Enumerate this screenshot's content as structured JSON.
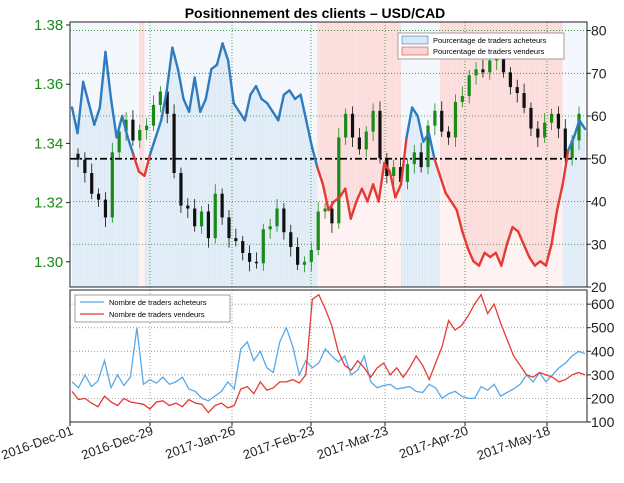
{
  "colors": {
    "buyers": "#2e7bbf",
    "buyers_light": "#5ba8e6",
    "sellers": "#e53a33",
    "sellers_fill": "#fbd4d4",
    "buyers_fill": "#d9e8f5",
    "candle_up": "#1a8a1a",
    "candle_down": "#111111",
    "left_axis": "#1a8a1a",
    "grid": "#2a8a2a"
  },
  "chart_data": [
    {
      "type": "line",
      "title": "Positionnement des clients – USD/CAD",
      "left_axis": {
        "ticks": [
          "1.38",
          "1.36",
          "1.34",
          "1.32",
          "1.30"
        ],
        "ylim": [
          1.2915,
          1.381
        ]
      },
      "right_axis": {
        "ticks": [
          "80",
          "70",
          "60",
          "50",
          "40",
          "30",
          "20"
        ],
        "ylim": [
          20,
          82
        ],
        "reference_line": 50
      },
      "legend": {
        "placement": "top-right",
        "entries": [
          "Pourcentage de traders acheteurs",
          "Pourcentage de traders vendeurs"
        ]
      },
      "x_ticks": [
        "2016-Dec-01",
        "2016-Dec-29",
        "2017-Jan-26",
        "2017-Feb-23",
        "2017-Mar-23",
        "2017-Apr-20",
        "2017-May-18"
      ],
      "series": [
        {
          "name": "Pourcentage de traders acheteurs",
          "values": [
            62,
            56,
            68,
            63,
            58,
            62,
            75,
            64,
            55,
            60,
            55,
            51,
            47,
            46,
            51,
            55,
            59,
            66,
            76,
            71,
            64,
            61,
            69,
            61,
            64,
            71,
            72,
            77,
            73,
            63,
            61,
            59,
            65,
            67,
            64,
            63,
            61,
            59,
            65,
            66,
            64,
            65,
            59,
            53,
            48,
            44,
            38,
            40,
            41,
            43,
            36,
            40,
            43,
            40,
            44,
            40,
            49,
            47,
            41,
            44,
            55,
            62,
            60,
            54,
            56,
            50,
            46,
            42,
            40,
            38,
            33,
            29,
            26,
            25,
            28,
            27,
            28,
            25,
            30,
            34,
            33,
            30,
            27,
            25,
            26,
            25,
            30,
            38,
            44,
            52,
            55,
            59,
            57
          ]
        },
        {
          "name": "Close",
          "values": [
            1.3345,
            1.33,
            1.323,
            1.321,
            1.315,
            1.337,
            1.344,
            1.348,
            1.341,
            1.3445,
            1.346,
            1.353,
            1.3575,
            1.35,
            1.33,
            1.319,
            1.318,
            1.312,
            1.317,
            1.308,
            1.323,
            1.315,
            1.308,
            1.307,
            1.303,
            1.3,
            1.2995,
            1.311,
            1.312,
            1.318,
            1.31,
            1.305,
            1.299,
            1.3,
            1.304,
            1.317,
            1.318,
            1.313,
            1.342,
            1.35,
            1.342,
            1.338,
            1.344,
            1.351,
            1.335,
            1.329,
            1.332,
            1.327,
            1.333,
            1.337,
            1.332,
            1.346,
            1.351,
            1.344,
            1.342,
            1.354,
            1.356,
            1.363,
            1.365,
            1.364,
            1.368,
            1.369,
            1.364,
            1.359,
            1.357,
            1.352,
            1.345,
            1.342,
            1.347,
            1.35,
            1.345,
            1.335,
            1.341,
            1.35
          ]
        }
      ]
    },
    {
      "type": "line",
      "right_axis": {
        "ticks": [
          "600",
          "500",
          "400",
          "300",
          "200",
          "100"
        ],
        "ylim": [
          100,
          660
        ]
      },
      "legend": {
        "placement": "top-left",
        "entries": [
          "Nombre de traders acheteurs",
          "Nombre de traders vendeurs"
        ]
      },
      "series": [
        {
          "name": "Nombre de traders acheteurs",
          "values": [
            270,
            245,
            300,
            250,
            275,
            360,
            245,
            300,
            255,
            290,
            500,
            260,
            280,
            265,
            290,
            260,
            270,
            290,
            240,
            230,
            200,
            190,
            210,
            230,
            270,
            240,
            410,
            440,
            360,
            400,
            330,
            310,
            440,
            500,
            420,
            300,
            360,
            330,
            350,
            410,
            380,
            355,
            380,
            300,
            320,
            380,
            270,
            245,
            255,
            260,
            240,
            245,
            250,
            230,
            225,
            260,
            245,
            200,
            220,
            230,
            210,
            200,
            200,
            250,
            235,
            260,
            210,
            225,
            240,
            260,
            300,
            270,
            310,
            270,
            300,
            330,
            350,
            380,
            400,
            390
          ]
        },
        {
          "name": "Nombre de traders vendeurs",
          "values": [
            230,
            195,
            200,
            180,
            165,
            210,
            185,
            170,
            200,
            185,
            180,
            175,
            155,
            185,
            190,
            170,
            180,
            165,
            195,
            180,
            175,
            140,
            170,
            180,
            160,
            170,
            240,
            250,
            220,
            270,
            235,
            245,
            270,
            270,
            280,
            265,
            300,
            620,
            640,
            580,
            510,
            400,
            340,
            320,
            360,
            330,
            290,
            330,
            350,
            300,
            330,
            290,
            330,
            380,
            340,
            280,
            350,
            420,
            530,
            490,
            510,
            550,
            600,
            640,
            560,
            600,
            520,
            450,
            380,
            340,
            300,
            290,
            310,
            300,
            290,
            270,
            280,
            300,
            310,
            300
          ]
        }
      ]
    }
  ]
}
